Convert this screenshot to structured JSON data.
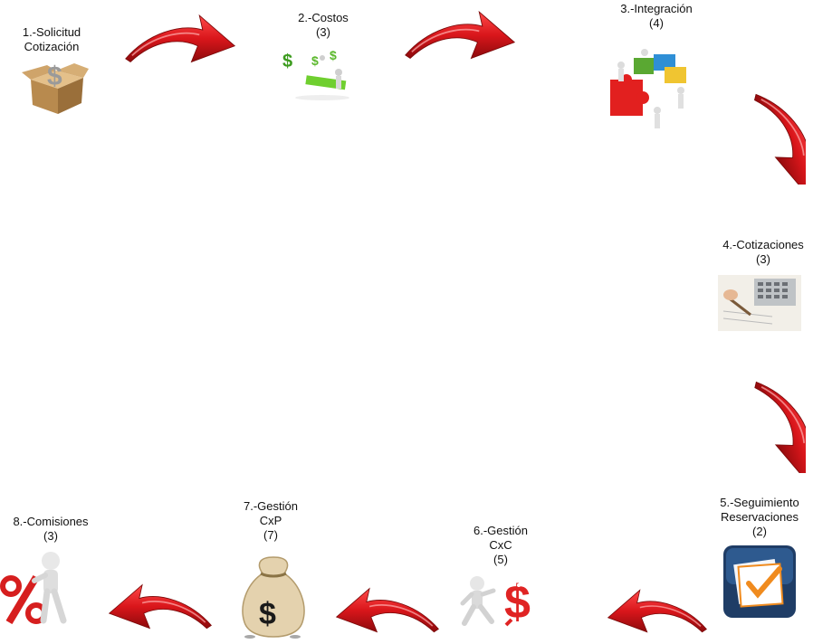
{
  "steps": [
    {
      "line1": "1.-Solicitud",
      "line2": "Cotización",
      "icon": "box-dollar-icon"
    },
    {
      "line1": "2.-Costos",
      "line2": "(3)",
      "icon": "dollar-figures-icon"
    },
    {
      "line1": "3.-Integración",
      "line2": "(4)",
      "icon": "puzzle-team-icon"
    },
    {
      "line1": "4.-Cotizaciones",
      "line2": "(3)",
      "icon": "calculator-document-icon"
    },
    {
      "line1": "5.-Seguimiento",
      "line2": "Reservaciones",
      "line3": "(2)",
      "icon": "calendar-check-icon"
    },
    {
      "line1": "6.-Gestión",
      "line2": "CxC",
      "line3": "(5)",
      "icon": "running-dollar-icon"
    },
    {
      "line1": "7.-Gestión",
      "line2": "CxP",
      "line3": "(7)",
      "icon": "money-bag-icon"
    },
    {
      "line1": "8.-Comisiones",
      "line2": "(3)",
      "icon": "percent-figure-icon"
    }
  ],
  "colors": {
    "arrow": "#d9161b",
    "arrow_dark": "#8d0a0c",
    "text": "#111111"
  }
}
